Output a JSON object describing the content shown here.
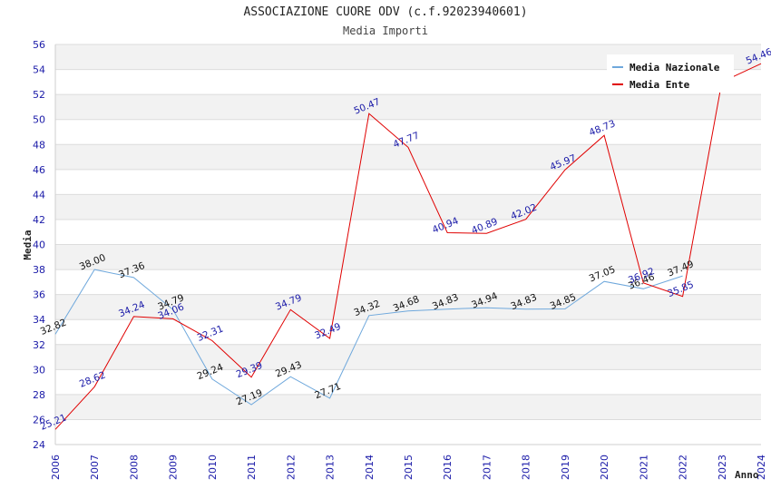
{
  "chart_data": {
    "type": "line",
    "title": "ASSOCIAZIONE CUORE ODV (c.f.92023940601)",
    "subtitle": "Media Importi",
    "xlabel": "Anno",
    "ylabel": "Media",
    "ylim": [
      24,
      56
    ],
    "ytick_step": 2,
    "grid": true,
    "legend_position": "top-right",
    "x": [
      2006,
      2007,
      2008,
      2009,
      2010,
      2011,
      2012,
      2013,
      2014,
      2015,
      2016,
      2017,
      2018,
      2019,
      2020,
      2021,
      2022,
      2023,
      2024
    ],
    "series": [
      {
        "name": "Media Nazionale",
        "color": "#6fa8dc",
        "values": [
          32.82,
          38.0,
          37.36,
          34.79,
          29.24,
          27.19,
          29.43,
          27.71,
          34.32,
          34.68,
          34.83,
          34.94,
          34.83,
          34.85,
          37.05,
          36.46,
          37.49,
          null,
          null
        ],
        "labels": [
          "32.82",
          "38.00",
          "37.36",
          "34.79",
          "29.24",
          "27.19",
          "29.43",
          "27.71",
          "34.32",
          "34.68",
          "34.83",
          "34.94",
          "34.83",
          "34.85",
          "37.05",
          "36.46",
          "37.49",
          "",
          ""
        ]
      },
      {
        "name": "Media Ente",
        "color": "#e00000",
        "values": [
          25.21,
          28.62,
          34.24,
          34.06,
          32.31,
          29.39,
          34.79,
          32.49,
          50.47,
          47.77,
          40.94,
          40.89,
          42.02,
          45.97,
          48.73,
          36.92,
          35.85,
          53.0,
          54.46
        ],
        "labels": [
          "25.21",
          "28.62",
          "34.24",
          "34.06",
          "32.31",
          "29.39",
          "34.79",
          "32.49",
          "50.47",
          "47.77",
          "40.94",
          "40.89",
          "42.02",
          "45.97",
          "48.73",
          "36.92",
          "35.85",
          "",
          "54.46"
        ]
      }
    ]
  }
}
